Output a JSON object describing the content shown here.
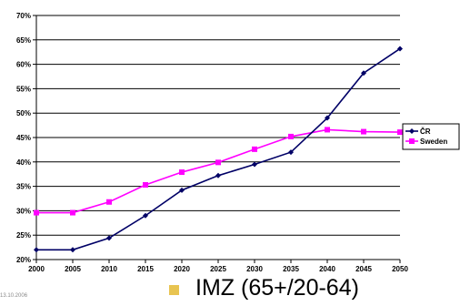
{
  "chart_data": {
    "type": "line",
    "x": [
      2000,
      2005,
      2010,
      2015,
      2020,
      2025,
      2030,
      2035,
      2040,
      2045,
      2050
    ],
    "x_tick_labels": [
      "2000",
      "2005",
      "2010",
      "2015",
      "2020",
      "2025",
      "2030",
      "2035",
      "2040",
      "2045",
      "2050"
    ],
    "y_tick_labels": [
      "20%",
      "25%",
      "30%",
      "35%",
      "40%",
      "45%",
      "50%",
      "55%",
      "60%",
      "65%",
      "70%"
    ],
    "ylim": [
      20,
      70
    ],
    "grid": true,
    "legend_position": "right",
    "series": [
      {
        "name": "ČR",
        "color": "#000066",
        "marker": "diamond",
        "values": [
          22,
          22,
          24.4,
          29,
          34.2,
          37.2,
          39.5,
          42,
          49,
          58.2,
          63.2
        ]
      },
      {
        "name": "Sweden",
        "color": "#ff00ff",
        "marker": "square",
        "values": [
          29.6,
          29.6,
          31.8,
          35.3,
          37.9,
          39.9,
          42.6,
          45.2,
          46.6,
          46.2,
          46.1
        ]
      }
    ]
  },
  "footer": {
    "date": "13.10.2006",
    "caption": "IMZ (65+/20-64)",
    "bullet_color": "#e8c451"
  }
}
